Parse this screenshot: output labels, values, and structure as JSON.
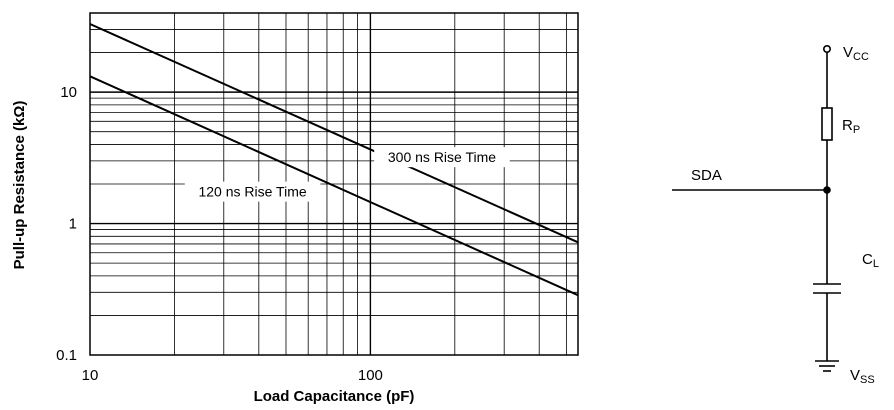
{
  "chart_data": {
    "type": "line",
    "xlabel": "Load Capacitance (pF)",
    "ylabel": "Pull-up Resistance (kΩ)",
    "x_scale": "log",
    "y_scale": "log",
    "xlim": [
      10,
      550
    ],
    "ylim": [
      0.1,
      40
    ],
    "grid": true,
    "x_ticks": [
      {
        "value": 10,
        "label": "10"
      },
      {
        "value": 100,
        "label": "100"
      }
    ],
    "y_ticks": [
      {
        "value": 0.1,
        "label": "0.1"
      },
      {
        "value": 1,
        "label": "1"
      },
      {
        "value": 10,
        "label": "10"
      }
    ],
    "series": [
      {
        "name": "300 ns Rise Time",
        "x": [
          10,
          550
        ],
        "y": [
          33,
          0.72
        ]
      },
      {
        "name": "120 ns Rise Time",
        "x": [
          10,
          550
        ],
        "y": [
          13.2,
          0.285
        ]
      }
    ]
  },
  "circuit": {
    "vcc": {
      "main": "V",
      "sub": "CC"
    },
    "rp": {
      "main": "R",
      "sub": "P"
    },
    "sda": "SDA",
    "cl": {
      "main": "C",
      "sub": "L"
    },
    "vss": {
      "main": "V",
      "sub": "SS"
    }
  }
}
